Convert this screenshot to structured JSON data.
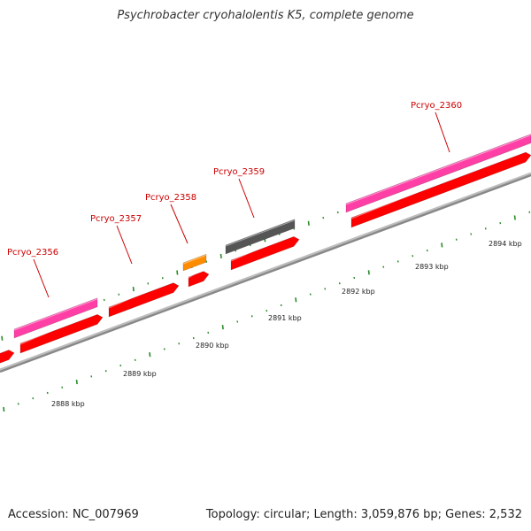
{
  "title": "Psychrobacter cryohalolentis K5, complete genome",
  "footer": {
    "accession": "Accession: NC_007969",
    "summary": "Topology: circular; Length: 3,059,876 bp; Genes: 2,532"
  },
  "colors": {
    "cds": "#ff0000",
    "gene": "#ff3fa6",
    "rna": "#ff8c00",
    "other": "#555555",
    "tick": "#2a8a2a",
    "backbone": "#888888",
    "label": "#cc0000"
  },
  "kbp_labels": [
    "2888 kbp",
    "2889 kbp",
    "2890 kbp",
    "2891 kbp",
    "2892 kbp",
    "2893 kbp",
    "2894 kbp"
  ],
  "gene_labels": [
    "Pcryo_2356",
    "Pcryo_2357",
    "Pcryo_2358",
    "Pcryo_2359",
    "Pcryo_2360"
  ]
}
